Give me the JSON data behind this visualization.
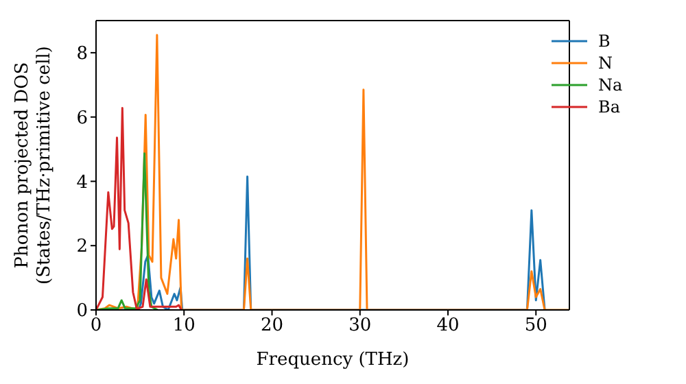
{
  "chart_data": {
    "type": "line",
    "xlabel": "Frequency (THz)",
    "ylabel": "Phonon projected DOS\n(States/THz·primitive cell)",
    "xlim": [
      0,
      53.8
    ],
    "xticks": [
      0,
      10,
      20,
      30,
      40,
      50
    ],
    "ylim": [
      0,
      9
    ],
    "yticks": [
      0,
      2,
      4,
      6,
      8
    ],
    "legend": "top right",
    "grid": false,
    "marker": "none",
    "line_style": "solid",
    "series": [
      {
        "name": "B",
        "color": "#1f77b4",
        "x": [
          0,
          4.8,
          5.1,
          5.6,
          5.9,
          6.3,
          6.6,
          7.2,
          7.6,
          8.2,
          8.9,
          9.2,
          9.6,
          9.8,
          16.8,
          17.2,
          17.6,
          49,
          49.5,
          50,
          50.5,
          51
        ],
        "values": [
          0,
          0,
          0.2,
          1.5,
          1.7,
          0.4,
          0.2,
          0.6,
          0.1,
          0,
          0.5,
          0.3,
          0.7,
          0,
          0,
          4.15,
          0,
          0,
          3.1,
          0.3,
          1.55,
          0
        ]
      },
      {
        "name": "N",
        "color": "#ff7f0e",
        "x": [
          0,
          1,
          1.5,
          2.5,
          3.5,
          4.7,
          5.2,
          5.63,
          6,
          6.4,
          6.93,
          7.4,
          8.1,
          8.8,
          9.1,
          9.4,
          9.7,
          16.8,
          17.2,
          17.6,
          30,
          30.4,
          30.8,
          49,
          49.5,
          50,
          50.5,
          51,
          53.8
        ],
        "values": [
          0,
          0.05,
          0.15,
          0.05,
          0.1,
          0,
          2,
          6.07,
          1.7,
          1.5,
          8.55,
          1,
          0.5,
          2.2,
          1.6,
          2.8,
          0,
          0,
          1.6,
          0,
          0,
          6.85,
          0,
          0,
          1.2,
          0.4,
          0.65,
          0,
          0
        ]
      },
      {
        "name": "Na",
        "color": "#2ca02c",
        "x": [
          0,
          1.5,
          2.5,
          2.9,
          3.3,
          4.5,
          5,
          5.5,
          6,
          6.3,
          7
        ],
        "values": [
          0,
          0.05,
          0.05,
          0.3,
          0.05,
          0.05,
          0.3,
          4.87,
          0.6,
          0.1,
          0
        ]
      },
      {
        "name": "Ba",
        "color": "#d62728",
        "x": [
          0,
          0.74,
          1.39,
          1.82,
          2.03,
          2.38,
          2.68,
          2.99,
          3.25,
          3.68,
          4.2,
          4.63,
          5.3,
          5.71,
          6.15,
          9.1,
          9.4,
          9.7
        ],
        "values": [
          0,
          0.4,
          3.66,
          2.52,
          2.6,
          5.36,
          1.89,
          6.28,
          3.1,
          2.7,
          0.55,
          0.03,
          0.1,
          0.95,
          0.1,
          0.1,
          0.15,
          0
        ]
      }
    ]
  }
}
